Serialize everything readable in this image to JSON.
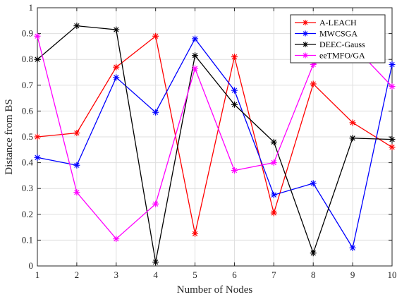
{
  "chart_data": {
    "type": "line",
    "x": [
      1,
      2,
      3,
      4,
      5,
      6,
      7,
      8,
      9,
      10
    ],
    "xlabel": "Number of Nodes",
    "ylabel": "Distance from BS",
    "xlim": [
      1,
      10
    ],
    "ylim": [
      0,
      1
    ],
    "x_ticks": [
      "1",
      "2",
      "3",
      "4",
      "5",
      "6",
      "7",
      "8",
      "9",
      "10"
    ],
    "y_ticks": [
      "0",
      "0.1",
      "0.2",
      "0.3",
      "0.4",
      "0.5",
      "0.6",
      "0.7",
      "0.8",
      "0.9",
      "1"
    ],
    "grid": true,
    "legend_position": "top-right",
    "marker": "asterisk",
    "series": [
      {
        "name": "A-LEACH",
        "color": "#ff0000",
        "values": [
          0.5,
          0.515,
          0.77,
          0.89,
          0.125,
          0.81,
          0.205,
          0.705,
          0.555,
          0.46
        ]
      },
      {
        "name": "MWCSGA",
        "color": "#0000ff",
        "values": [
          0.42,
          0.39,
          0.73,
          0.595,
          0.88,
          0.68,
          0.275,
          0.32,
          0.07,
          0.78
        ]
      },
      {
        "name": "DEEC-Gauss",
        "color": "#000000",
        "values": [
          0.8,
          0.93,
          0.915,
          0.015,
          0.815,
          0.625,
          0.48,
          0.05,
          0.495,
          0.49
        ]
      },
      {
        "name": "eeTMFO/GA",
        "color": "#ff00ff",
        "values": [
          0.89,
          0.285,
          0.105,
          0.24,
          0.765,
          0.37,
          0.4,
          0.78,
          0.855,
          0.695
        ]
      }
    ]
  }
}
